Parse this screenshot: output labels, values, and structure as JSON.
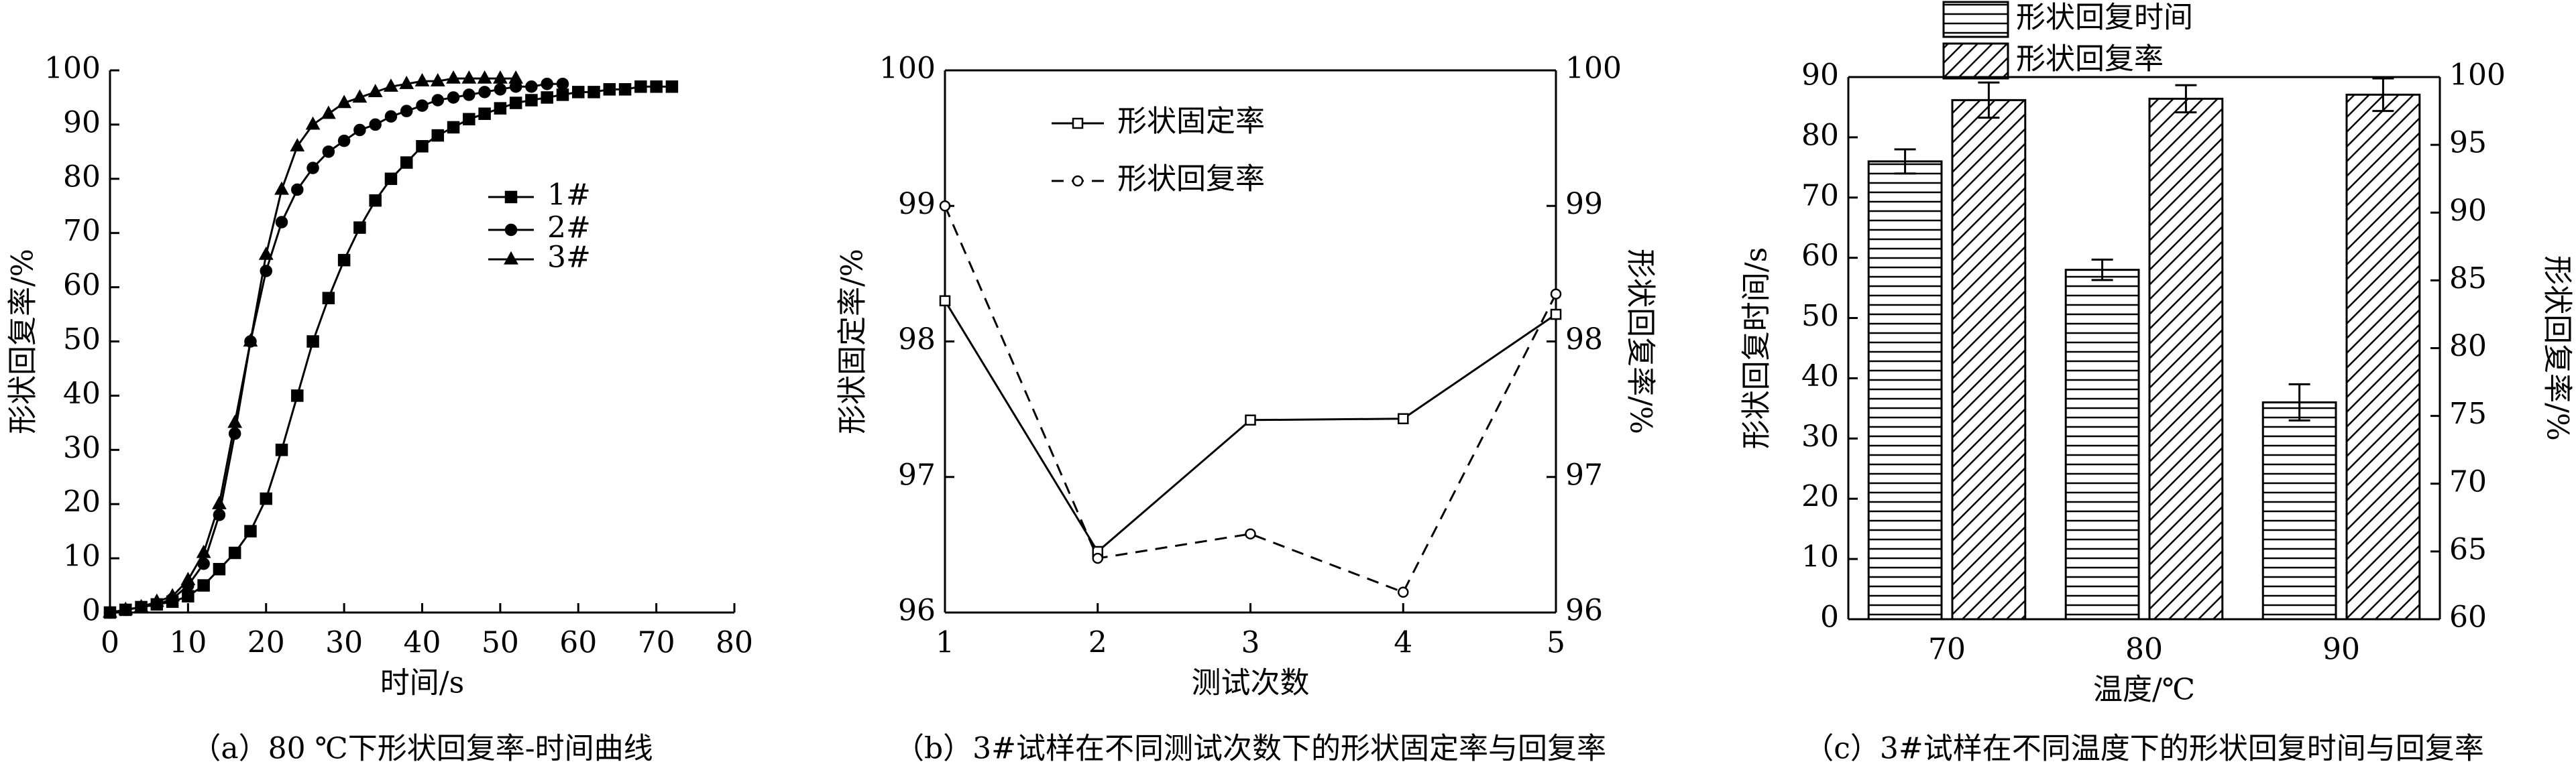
{
  "chart_data": [
    {
      "type": "line",
      "caption": "（a）80 ℃下形状回复率-时间曲线",
      "xlabel": "时间/s",
      "ylabel": "形状回复率/%",
      "xlim": [
        0,
        80
      ],
      "xticks": [
        0,
        10,
        20,
        30,
        40,
        50,
        60,
        70,
        80
      ],
      "ylim": [
        0,
        100
      ],
      "yticks": [
        0,
        10,
        20,
        30,
        40,
        50,
        60,
        70,
        80,
        90,
        100
      ],
      "series": [
        {
          "name": "1#",
          "color": "#000",
          "marker": "square",
          "linestyle": "solid",
          "x": [
            0,
            2,
            4,
            6,
            8,
            10,
            12,
            14,
            16,
            18,
            20,
            22,
            24,
            26,
            28,
            30,
            32,
            34,
            36,
            38,
            40,
            42,
            44,
            46,
            48,
            50,
            52,
            54,
            56,
            58,
            60,
            62,
            64,
            66,
            68,
            70,
            72
          ],
          "values": [
            0,
            0.5,
            1,
            1.5,
            2,
            3,
            5,
            8,
            11,
            15,
            21,
            30,
            40,
            50,
            58,
            65,
            71,
            76,
            80,
            83,
            86,
            88,
            89.5,
            91,
            92,
            93,
            94,
            94.5,
            95,
            95.5,
            96,
            96,
            96.5,
            96.5,
            97,
            97,
            97
          ]
        },
        {
          "name": "2#",
          "color": "#000",
          "marker": "circle",
          "linestyle": "solid",
          "x": [
            0,
            2,
            4,
            6,
            8,
            10,
            12,
            14,
            16,
            18,
            20,
            22,
            24,
            26,
            28,
            30,
            32,
            34,
            36,
            38,
            40,
            42,
            44,
            46,
            48,
            50,
            52,
            54,
            56,
            58
          ],
          "values": [
            0,
            0.5,
            1,
            1.5,
            2.5,
            5,
            9,
            18,
            33,
            50,
            63,
            72,
            78,
            82,
            85,
            87,
            89,
            90,
            91.5,
            92.5,
            93.5,
            94.5,
            95,
            95.5,
            96,
            96.5,
            97,
            97,
            97.5,
            97.5
          ]
        },
        {
          "name": "3#",
          "color": "#000",
          "marker": "triangle",
          "linestyle": "solid",
          "x": [
            0,
            2,
            4,
            6,
            8,
            10,
            12,
            14,
            16,
            18,
            20,
            22,
            24,
            26,
            28,
            30,
            32,
            34,
            36,
            38,
            40,
            42,
            44,
            46,
            48,
            50,
            52
          ],
          "values": [
            0,
            0.5,
            1,
            2,
            3,
            6,
            11,
            20,
            35,
            50,
            66,
            78,
            86,
            90,
            92,
            94,
            95,
            96,
            97,
            97.5,
            98,
            98,
            98.5,
            98.5,
            98.5,
            98.5,
            98.5
          ]
        }
      ]
    },
    {
      "type": "line",
      "caption": "（b）3#试样在不同测试次数下的形状固定率与回复率",
      "xlabel": "测试次数",
      "ylabel": "形状固定率/%",
      "y2label": "形状回复率/%",
      "x": [
        1,
        2,
        3,
        4,
        5
      ],
      "xlim": [
        1,
        5
      ],
      "xticks": [
        1,
        2,
        3,
        4,
        5
      ],
      "ylim": [
        96,
        100
      ],
      "yticks": [
        96,
        97,
        98,
        99,
        100
      ],
      "y2lim": [
        96,
        100
      ],
      "y2ticks": [
        96,
        97,
        98,
        99,
        100
      ],
      "series": [
        {
          "name": "形状固定率",
          "color": "#000",
          "marker": "square",
          "linestyle": "solid",
          "values": [
            98.3,
            96.45,
            97.42,
            97.43,
            98.2
          ]
        },
        {
          "name": "形状回复率",
          "color": "#000",
          "marker": "circle",
          "linestyle": "dashed",
          "axis": "y2",
          "values": [
            99.0,
            96.4,
            96.58,
            96.15,
            98.35
          ]
        }
      ]
    },
    {
      "type": "bar",
      "caption": "（c）3#试样在不同温度下的形状回复时间与回复率",
      "xlabel": "温度/℃",
      "ylabel": "形状回复时间/s",
      "y2label": "形状回复率/%",
      "categories": [
        "70",
        "80",
        "90"
      ],
      "ylim": [
        0,
        90
      ],
      "yticks": [
        0,
        10,
        20,
        30,
        40,
        50,
        60,
        70,
        80,
        90
      ],
      "y2lim": [
        60,
        100
      ],
      "y2ticks": [
        60,
        65,
        70,
        75,
        80,
        85,
        90,
        95,
        100
      ],
      "series": [
        {
          "name": "形状回复时间",
          "color": "#000",
          "pattern": "horizontal",
          "values": [
            76,
            58,
            36
          ],
          "errors": [
            2,
            1.7,
            3
          ]
        },
        {
          "name": "形状回复率",
          "color": "#000",
          "pattern": "diagonal",
          "axis": "y2",
          "values": [
            98.3,
            98.4,
            98.7
          ],
          "errors": [
            1.3,
            1,
            1.2
          ]
        }
      ]
    }
  ]
}
